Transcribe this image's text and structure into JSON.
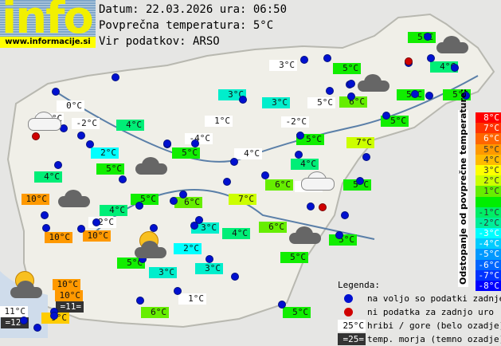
{
  "logo": {
    "word": "info",
    "url": "www.informacije.si"
  },
  "header": {
    "date_line": "Datum: 22.03.2026 ura: 06:50",
    "avg_line": "Povprečna temperatura: 5°C",
    "source_line": "Vir podatkov: ARSO"
  },
  "colors": {
    "white": "#ffffff",
    "dark": "#333333",
    "dev+5": "#ff9900",
    "dev+4": "#ffcc00",
    "dev+2": "#ccff00",
    "dev+1": "#66ee00",
    "dev0": "#11ee00",
    "dev-1": "#00ee77",
    "dev-2": "#00eecc",
    "dev-3": "#00ffff"
  },
  "labels": [
    {
      "t": "3°C",
      "c": "white"
    },
    {
      "t": "5°C",
      "c": "dev0"
    },
    {
      "t": "5°C",
      "c": "dev0"
    },
    {
      "t": "4°C",
      "c": "dev-1"
    },
    {
      "t": "3°C",
      "c": "dev-2"
    },
    {
      "t": "3°C",
      "c": "dev-2"
    },
    {
      "t": "5°C",
      "c": "white"
    },
    {
      "t": "6°C",
      "c": "dev+1"
    },
    {
      "t": "5°C",
      "c": "dev0"
    },
    {
      "t": "5°C",
      "c": "dev0"
    },
    {
      "t": "0°C",
      "c": "white"
    },
    {
      "t": "-10°C",
      "c": "white"
    },
    {
      "t": "-2°C",
      "c": "white"
    },
    {
      "t": "4°C",
      "c": "dev-1"
    },
    {
      "t": "1°C",
      "c": "white"
    },
    {
      "t": "-2°C",
      "c": "white"
    },
    {
      "t": "5°C",
      "c": "dev0"
    },
    {
      "t": "2°C",
      "c": "dev-3"
    },
    {
      "t": "-4°C",
      "c": "white"
    },
    {
      "t": "5°C",
      "c": "dev0"
    },
    {
      "t": "7°C",
      "c": "dev+2"
    },
    {
      "t": "4°C",
      "c": "white"
    },
    {
      "t": "5°C",
      "c": "dev0"
    },
    {
      "t": "5°C",
      "c": "dev0"
    },
    {
      "t": "4°C",
      "c": "dev-1"
    },
    {
      "t": "4°C",
      "c": "dev-1"
    },
    {
      "t": "6°C",
      "c": "dev+1"
    },
    {
      "t": "2°C",
      "c": "white"
    },
    {
      "t": "5°C",
      "c": "dev0"
    },
    {
      "t": "10°C",
      "c": "dev+5"
    },
    {
      "t": "5°C",
      "c": "dev0"
    },
    {
      "t": "6°C",
      "c": "dev+1"
    },
    {
      "t": "7°C",
      "c": "dev+2"
    },
    {
      "t": "4°C",
      "c": "dev-1"
    },
    {
      "t": "2°C",
      "c": "white"
    },
    {
      "t": "10°C",
      "c": "dev+5"
    },
    {
      "t": "10°C",
      "c": "dev+5"
    },
    {
      "t": "3°C",
      "c": "dev-2"
    },
    {
      "t": "4°C",
      "c": "dev-1"
    },
    {
      "t": "6°C",
      "c": "dev+1"
    },
    {
      "t": "5°C",
      "c": "dev0"
    },
    {
      "t": "5°C",
      "c": "dev0"
    },
    {
      "t": "2°C",
      "c": "dev-3"
    },
    {
      "t": "3°C",
      "c": "dev-2"
    },
    {
      "t": "3°C",
      "c": "dev-2"
    },
    {
      "t": "5°C",
      "c": "dev0"
    },
    {
      "t": "10°C",
      "c": "dev+5"
    },
    {
      "t": "10°C",
      "c": "dev+5"
    },
    {
      "t": "=11=",
      "c": "dark"
    },
    {
      "t": "11°C",
      "c": "white"
    },
    {
      "t": "=12=",
      "c": "dark"
    },
    {
      "t": "9°C",
      "c": "dev+4"
    },
    {
      "t": "1°C",
      "c": "white"
    },
    {
      "t": "6°C",
      "c": "dev+1"
    },
    {
      "t": "5°C",
      "c": "dev0"
    }
  ],
  "scale": {
    "title": "Odstopanje od povprečne temperature:",
    "steps": [
      {
        "t": "8°C",
        "c": "#ff0000"
      },
      {
        "t": "7°C",
        "c": "#ff3300"
      },
      {
        "t": "6°C",
        "c": "#ff6600"
      },
      {
        "t": "5°C",
        "c": "#ff9900"
      },
      {
        "t": "4°C",
        "c": "#ffbb00"
      },
      {
        "t": "3°C",
        "c": "#ffff00"
      },
      {
        "t": "2°C",
        "c": "#ccff00"
      },
      {
        "t": "1°C",
        "c": "#66ee00"
      },
      {
        "t": "",
        "c": "#00ee00"
      },
      {
        "t": "-1°C",
        "c": "#00ee66"
      },
      {
        "t": "-2°C",
        "c": "#00ee99"
      },
      {
        "t": "-3°C",
        "c": "#00ffff"
      },
      {
        "t": "-4°C",
        "c": "#00ccff"
      },
      {
        "t": "-5°C",
        "c": "#0099ff"
      },
      {
        "t": "-6°C",
        "c": "#0066ff"
      },
      {
        "t": "-7°C",
        "c": "#0033ff"
      },
      {
        "t": "-8°C",
        "c": "#0000ff"
      }
    ]
  },
  "legend": {
    "title": "Legenda:",
    "available": "na voljo so podatki zadnje ure",
    "missing": "ni podatka za zadnjo uro",
    "mountain_sample": "25°C",
    "mountain": "hribi / gore (belo ozadje)",
    "sea_sample": "=25=",
    "sea": "temp. morja (temno ozadje)"
  }
}
